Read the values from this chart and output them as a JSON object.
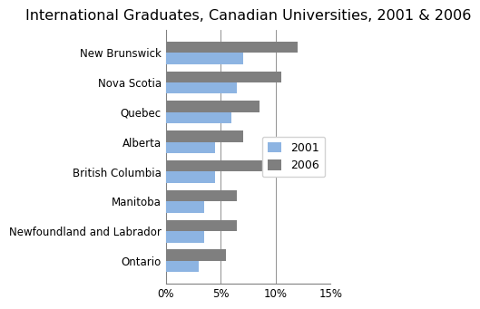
{
  "title": "International Graduates, Canadian Universities, 2001 & 2006",
  "provinces": [
    "New Brunswick",
    "Nova Scotia",
    "Quebec",
    "Alberta",
    "British Columbia",
    "Manitoba",
    "Newfoundland and Labrador",
    "Ontario"
  ],
  "values_2001": [
    7.0,
    6.5,
    6.0,
    4.5,
    4.5,
    3.5,
    3.5,
    3.0
  ],
  "values_2006": [
    12.0,
    10.5,
    8.5,
    7.0,
    10.5,
    6.5,
    6.5,
    5.5
  ],
  "color_2001": "#8db4e2",
  "color_2006": "#7f7f7f",
  "bar_height": 0.38,
  "xlim": [
    0,
    15
  ],
  "xticks": [
    0,
    5,
    10,
    15
  ],
  "xticklabels": [
    "0%",
    "5%",
    "10%",
    "15%"
  ],
  "legend_labels": [
    "2001",
    "2006"
  ],
  "background_color": "#ffffff",
  "title_fontsize": 11.5,
  "tick_fontsize": 8.5,
  "legend_fontsize": 9
}
